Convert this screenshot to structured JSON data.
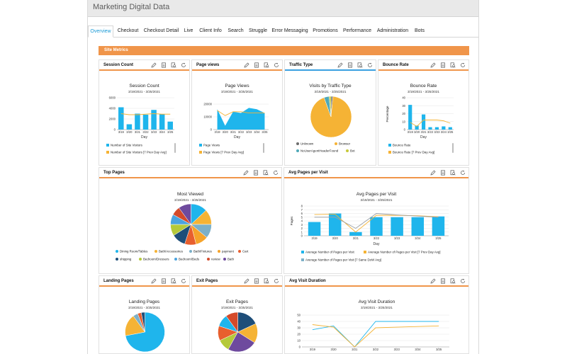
{
  "app": {
    "title": "Marketing Digital Data"
  },
  "tabs": [
    "Overview",
    "Checkout",
    "Checkout Detail",
    "Live",
    "Client Info",
    "Search",
    "Struggle",
    "Error Messaging",
    "Promotions",
    "Performance",
    "Administration",
    "Bots"
  ],
  "section": {
    "title": "Site Metrics"
  },
  "colors": {
    "accent": "#f0954a",
    "blue": "#1fb5ec",
    "orange": "#f5b335",
    "grey": "#9aa0a6",
    "tabActive": "#1a9ad6"
  },
  "panels": {
    "session_count": {
      "title": "Session Count",
      "chart_title": "Session Count",
      "subtitle": "3/19/2021 - 3/25/2021",
      "xlabel": "Day",
      "legend": [
        "Number of Site Visitors",
        "Number of Site Visitors [7 Prev Day Avg]"
      ]
    },
    "page_views": {
      "title": "Page views",
      "chart_title": "Page Views",
      "subtitle": "3/19/2021 - 3/25/2021",
      "xlabel": "Day",
      "legend": [
        "Page Views",
        "Page Views [7 Prev Day Avg]"
      ]
    },
    "traffic_type": {
      "title": "Traffic Type",
      "chart_title": "Visits by Traffic Type",
      "subtitle": "3/19/2021 - 3/25/2021",
      "legend": [
        "Unknown",
        "Browser",
        "NoUserAgentHeaderFound",
        "Bot"
      ]
    },
    "bounce_rate": {
      "title": "Bounce Rate",
      "chart_title": "Bounce Rate",
      "subtitle": "3/19/2021 - 3/25/2021",
      "xlabel": "Day",
      "ylabel": "Percentage",
      "legend": [
        "Bounce Rate",
        "Bounce Rate [7 Prev Day Avg]"
      ]
    },
    "top_pages": {
      "title": "Top Pages",
      "chart_title": "Most Viewed",
      "subtitle": "3/19/2021 - 3/25/2021",
      "legend": [
        "Dining Room/Tables",
        "Bath/Accessories",
        "Bath/Fixtures",
        "payment",
        "Cart",
        "shipping",
        "Bedroom/Dressers",
        "Bedroom/Beds",
        "review",
        "Bath"
      ]
    },
    "avg_pages": {
      "title": "Avg Pages per Visit",
      "chart_title": "Avg Pages per Visit",
      "subtitle": "3/19/2021 - 3/25/2021",
      "xlabel": "Day",
      "ylabel": "Pages",
      "legend": [
        "Average Number of Pages per Visit",
        "Average Number of Pages per Visit [7 Prev Day Avg]",
        "Average Number of Pages per Visit [7 Same DoW Avg]"
      ]
    },
    "landing_pages": {
      "title": "Landing Pages",
      "chart_title": "Landing Pages",
      "subtitle": "3/19/2021 - 3/25/2021"
    },
    "exit_pages": {
      "title": "Exit Pages",
      "chart_title": "Exit Pages",
      "subtitle": "3/19/2021 - 3/25/2021"
    },
    "avg_visit_duration": {
      "title": "Avg Visit Duration",
      "chart_title": "Avg Visit Duration",
      "subtitle": "3/19/2021 - 3/25/2021"
    }
  },
  "panel_tools": [
    "pencil-icon",
    "document-icon",
    "search-document-icon",
    "refresh-icon"
  ],
  "chart_data": [
    {
      "id": "session_count",
      "type": "bar",
      "categories": [
        "3/19",
        "3/20",
        "3/21",
        "3/22",
        "3/23",
        "3/24",
        "3/25"
      ],
      "yticks": [
        "0",
        "2000",
        "4000",
        "6000"
      ],
      "ylim": [
        0,
        6000
      ],
      "series": [
        {
          "name": "Number of Site Visitors",
          "type": "bar",
          "values": [
            4200,
            1000,
            3000,
            2800,
            3700,
            2900,
            1500
          ]
        },
        {
          "name": "Number of Site Visitors [7 Prev Day Avg]",
          "type": "line",
          "values": [
            3000,
            2800,
            2800,
            2900,
            3000,
            2900,
            2900
          ]
        }
      ]
    },
    {
      "id": "page_views",
      "type": "area",
      "categories": [
        "3/19",
        "3/20",
        "3/21",
        "3/22",
        "3/23",
        "3/24",
        "3/25"
      ],
      "yticks": [
        "0",
        "10000",
        "20000"
      ],
      "ylim": [
        0,
        25000
      ],
      "series": [
        {
          "name": "Page Views",
          "type": "area",
          "values": [
            16000,
            3000,
            14000,
            13000,
            17000,
            16000,
            13000
          ]
        },
        {
          "name": "Page Views [7 Prev Day Avg]",
          "type": "line",
          "values": [
            15000,
            11000,
            14000,
            14000,
            13000,
            13000,
            13000
          ]
        }
      ]
    },
    {
      "id": "traffic_type",
      "type": "pie",
      "slices": [
        {
          "label": "Unknown",
          "value": 1.5,
          "color": "#6d6d6d"
        },
        {
          "label": "Browser",
          "value": 93,
          "color": "#f5b335"
        },
        {
          "label": "NoUserAgentHeaderFound",
          "value": 4,
          "color": "#4fa9b8"
        },
        {
          "label": "Bot",
          "value": 1.5,
          "color": "#c7c93a"
        }
      ]
    },
    {
      "id": "bounce_rate",
      "type": "bar",
      "categories": [
        "3/19",
        "3/20",
        "3/21",
        "3/22",
        "3/23",
        "3/24",
        "3/25"
      ],
      "yticks": [
        "0",
        "10",
        "20",
        "30",
        "40"
      ],
      "ylim": [
        0,
        40
      ],
      "series": [
        {
          "name": "Bounce Rate",
          "type": "bar",
          "values": [
            31,
            5,
            19,
            3,
            3,
            4,
            3
          ]
        },
        {
          "name": "Bounce Rate [7 Prev Day Avg]",
          "type": "line",
          "values": [
            9,
            4,
            12,
            12,
            12,
            11,
            8
          ]
        }
      ]
    },
    {
      "id": "top_pages",
      "type": "pie",
      "slices": [
        {
          "label": "Dining Room/Tables",
          "value": 13,
          "color": "#1fb5ec"
        },
        {
          "label": "Bath/Accessories",
          "value": 12,
          "color": "#f5b335"
        },
        {
          "label": "Bath/Fixtures",
          "value": 11,
          "color": "#7cb0c8"
        },
        {
          "label": "payment",
          "value": 10,
          "color": "#f6a32a"
        },
        {
          "label": "Cart",
          "value": 9,
          "color": "#e85f2e"
        },
        {
          "label": "shipping",
          "value": 11,
          "color": "#1e4e79"
        },
        {
          "label": "Bedroom/Dressers",
          "value": 9,
          "color": "#b5c93a"
        },
        {
          "label": "Bedroom/Beds",
          "value": 8,
          "color": "#4aa3e0"
        },
        {
          "label": "review",
          "value": 7,
          "color": "#d44a2a"
        },
        {
          "label": "Bath",
          "value": 10,
          "color": "#6e4a9e"
        }
      ]
    },
    {
      "id": "avg_pages",
      "type": "bar",
      "categories": [
        "3/19",
        "3/20",
        "3/21",
        "3/22",
        "3/23",
        "3/24",
        "3/25"
      ],
      "yticks": [
        "0",
        "1",
        "2",
        "3",
        "4",
        "5",
        "6",
        "7",
        "8"
      ],
      "ylim": [
        0,
        8
      ],
      "series": [
        {
          "name": "Average Number of Pages per Visit",
          "type": "bar",
          "values": [
            3.7,
            6.0,
            1.0,
            5.0,
            5.0,
            5.0,
            5.2
          ]
        },
        {
          "name": "Average Number of Pages per Visit [7 Prev Day Avg]",
          "type": "line",
          "values": [
            5.7,
            5.8,
            1.0,
            5.5,
            5.5,
            5.4,
            5.1
          ]
        },
        {
          "name": "Average Number of Pages per Visit [7 Same DoW Avg]",
          "type": "line",
          "values": [
            5.0,
            5.0,
            2.0,
            6.0,
            5.6,
            5.3,
            5.0
          ]
        }
      ]
    },
    {
      "id": "landing_pages",
      "type": "pie",
      "slices": [
        {
          "value": 72,
          "color": "#1fb5ec"
        },
        {
          "value": 18,
          "color": "#f5b335"
        },
        {
          "value": 4,
          "color": "#7cb0c8"
        },
        {
          "value": 3,
          "color": "#e85f2e"
        },
        {
          "value": 3,
          "color": "#1e4e79"
        }
      ]
    },
    {
      "id": "exit_pages",
      "type": "pie",
      "slices": [
        {
          "value": 18,
          "color": "#1e4e79"
        },
        {
          "value": 16,
          "color": "#f5b335"
        },
        {
          "value": 24,
          "color": "#6e4a9e"
        },
        {
          "value": 10,
          "color": "#b5c93a"
        },
        {
          "value": 12,
          "color": "#e85f2e"
        },
        {
          "value": 10,
          "color": "#1fb5ec"
        },
        {
          "value": 10,
          "color": "#d44a2a"
        }
      ]
    },
    {
      "id": "avg_visit_duration",
      "type": "line",
      "categories": [
        "3/19",
        "3/20",
        "3/21",
        "3/22",
        "3/23",
        "3/24",
        "3/25"
      ],
      "yticks": [
        "0",
        "10",
        "20",
        "30",
        "40",
        "50"
      ],
      "ylim": [
        0,
        50
      ],
      "series": [
        {
          "type": "line",
          "values": [
            27,
            33,
            0,
            40,
            40,
            40,
            40
          ],
          "color": "#1fb5ec"
        },
        {
          "type": "line",
          "values": [
            35,
            31,
            0,
            30,
            31,
            32,
            33
          ],
          "color": "#f5b335"
        }
      ]
    }
  ]
}
